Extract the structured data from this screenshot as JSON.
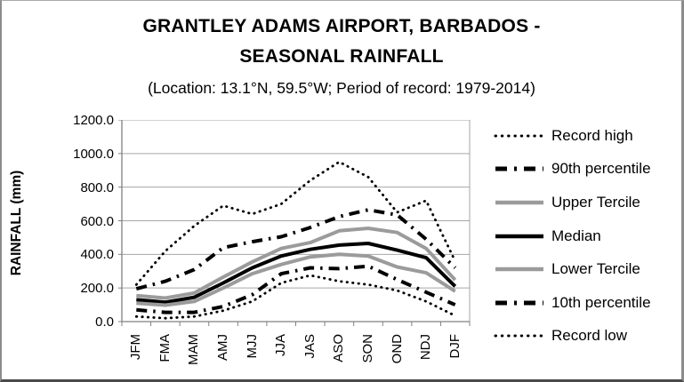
{
  "header": {
    "title_line1": "GRANTLEY ADAMS AIRPORT, BARBADOS -",
    "title_line2": "SEASONAL RAINFALL",
    "subtitle": "(Location: 13.1°N, 59.5°W; Period of record: 1979-2014)"
  },
  "chart_data": {
    "type": "line",
    "title": "GRANTLEY ADAMS AIRPORT, BARBADOS - SEASONAL RAINFALL",
    "subtitle": "(Location: 13.1°N, 59.5°W; Period of record: 1979-2014)",
    "xlabel": "",
    "ylabel": "RAINFALL (mm)",
    "ylim": [
      0,
      1200
    ],
    "ytick_step": 200,
    "ytick_labels": [
      "0.0",
      "200.0",
      "400.0",
      "600.0",
      "800.0",
      "1000.0",
      "1200.0"
    ],
    "categories": [
      "JFM",
      "FMA",
      "MAM",
      "AMJ",
      "MJJ",
      "JJA",
      "JAS",
      "ASO",
      "SON",
      "OND",
      "NDJ",
      "DJF"
    ],
    "grid": true,
    "legend_position": "right",
    "series": [
      {
        "name": "Record high",
        "style": "dotted",
        "color": "#000000",
        "values": [
          220,
          420,
          570,
          690,
          640,
          700,
          840,
          950,
          860,
          650,
          720,
          360
        ]
      },
      {
        "name": "90th percentile",
        "style": "dashdot",
        "color": "#000000",
        "values": [
          195,
          240,
          310,
          440,
          475,
          505,
          560,
          625,
          665,
          635,
          490,
          320
        ]
      },
      {
        "name": "Upper Tercile",
        "style": "solid",
        "color": "#9b9b9b",
        "values": [
          155,
          140,
          170,
          265,
          355,
          435,
          470,
          540,
          555,
          530,
          435,
          248
        ]
      },
      {
        "name": "Median",
        "style": "solid",
        "color": "#000000",
        "values": [
          130,
          115,
          145,
          230,
          320,
          390,
          430,
          455,
          465,
          425,
          380,
          210
        ]
      },
      {
        "name": "Lower Tercile",
        "style": "solid",
        "color": "#9b9b9b",
        "values": [
          110,
          98,
          120,
          200,
          285,
          340,
          385,
          400,
          390,
          325,
          290,
          180
        ]
      },
      {
        "name": "10th percentile",
        "style": "dashdot",
        "color": "#000000",
        "values": [
          70,
          55,
          55,
          90,
          160,
          285,
          320,
          315,
          330,
          250,
          175,
          100
        ]
      },
      {
        "name": "Record low",
        "style": "dotted",
        "color": "#000000",
        "values": [
          30,
          20,
          30,
          65,
          120,
          230,
          275,
          240,
          220,
          185,
          120,
          35
        ]
      }
    ],
    "colors": {
      "gridline": "#a6a6a6",
      "plot_border": "#a6a6a6",
      "axis": "#808080",
      "gray_series": "#9b9b9b",
      "black_series": "#000000",
      "background": "#ffffff"
    }
  }
}
